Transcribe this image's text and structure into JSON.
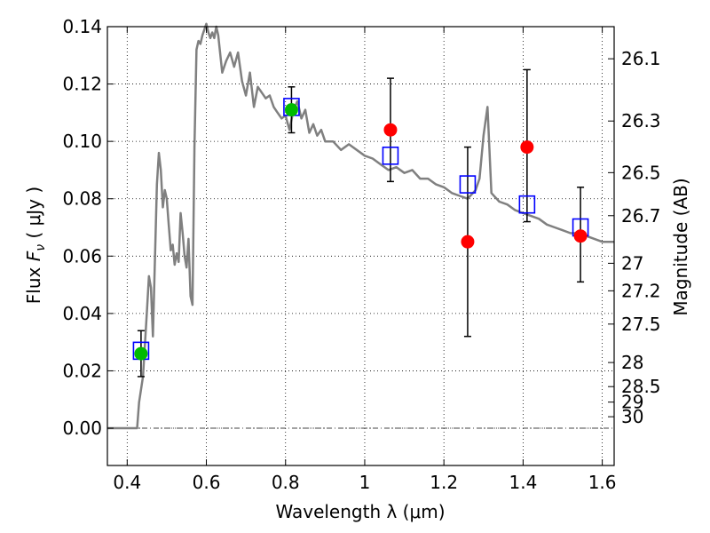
{
  "chart_data": {
    "type": "scatter",
    "xlabel": "Wavelength  λ (μm)",
    "ylabel": {
      "prefix": "Flux  ",
      "symbol": "F",
      "subscript": "ν",
      "suffix": "  ( μJy )"
    },
    "right_ylabel": "Magnitude (AB)",
    "xlim": [
      0.35,
      1.63
    ],
    "ylim": [
      -0.013,
      0.14
    ],
    "grid": true,
    "x_ticks": [
      0.4,
      0.6,
      0.8,
      1.0,
      1.2,
      1.4,
      1.6
    ],
    "x_tick_labels": [
      "0.4",
      "0.6",
      "0.8",
      "1",
      "1.2",
      "1.4",
      "1.6"
    ],
    "y_ticks": [
      0.0,
      0.02,
      0.04,
      0.06,
      0.08,
      0.1,
      0.12,
      0.14
    ],
    "y_tick_labels": [
      "0.00",
      "0.02",
      "0.04",
      "0.06",
      "0.08",
      "0.10",
      "0.12",
      "0.14"
    ],
    "right_ticks": [
      {
        "flux": 0.1288,
        "label": "26.1"
      },
      {
        "flux": 0.1071,
        "label": "26.3"
      },
      {
        "flux": 0.0891,
        "label": "26.5"
      },
      {
        "flux": 0.0741,
        "label": "26.7"
      },
      {
        "flux": 0.0575,
        "label": "27"
      },
      {
        "flux": 0.0479,
        "label": "27.2"
      },
      {
        "flux": 0.0363,
        "label": "27.5"
      },
      {
        "flux": 0.0229,
        "label": "28"
      },
      {
        "flux": 0.0145,
        "label": "28.5"
      },
      {
        "flux": 0.0091,
        "label": "29"
      },
      {
        "flux": 0.004,
        "label": "30"
      }
    ],
    "model_spectrum": {
      "color": "#808080",
      "x": [
        0.35,
        0.4,
        0.425,
        0.43,
        0.44,
        0.45,
        0.455,
        0.46,
        0.465,
        0.47,
        0.475,
        0.48,
        0.485,
        0.49,
        0.495,
        0.5,
        0.505,
        0.51,
        0.515,
        0.52,
        0.525,
        0.53,
        0.535,
        0.54,
        0.545,
        0.55,
        0.555,
        0.56,
        0.565,
        0.57,
        0.575,
        0.58,
        0.585,
        0.59,
        0.595,
        0.6,
        0.605,
        0.61,
        0.615,
        0.62,
        0.625,
        0.63,
        0.64,
        0.65,
        0.66,
        0.67,
        0.68,
        0.69,
        0.7,
        0.71,
        0.72,
        0.73,
        0.74,
        0.75,
        0.76,
        0.77,
        0.78,
        0.79,
        0.8,
        0.81,
        0.82,
        0.83,
        0.84,
        0.85,
        0.86,
        0.87,
        0.88,
        0.89,
        0.9,
        0.92,
        0.94,
        0.96,
        0.98,
        1.0,
        1.02,
        1.04,
        1.06,
        1.08,
        1.1,
        1.12,
        1.14,
        1.16,
        1.18,
        1.2,
        1.22,
        1.24,
        1.26,
        1.28,
        1.29,
        1.3,
        1.31,
        1.32,
        1.34,
        1.36,
        1.38,
        1.4,
        1.42,
        1.44,
        1.46,
        1.48,
        1.5,
        1.52,
        1.54,
        1.56,
        1.58,
        1.6,
        1.63
      ],
      "y": [
        0.0,
        0.0,
        0.0,
        0.009,
        0.018,
        0.041,
        0.053,
        0.049,
        0.032,
        0.058,
        0.085,
        0.096,
        0.09,
        0.077,
        0.083,
        0.08,
        0.071,
        0.062,
        0.064,
        0.057,
        0.061,
        0.058,
        0.075,
        0.068,
        0.06,
        0.056,
        0.066,
        0.046,
        0.043,
        0.098,
        0.132,
        0.135,
        0.134,
        0.137,
        0.139,
        0.141,
        0.138,
        0.136,
        0.138,
        0.136,
        0.14,
        0.137,
        0.124,
        0.128,
        0.131,
        0.126,
        0.131,
        0.121,
        0.116,
        0.124,
        0.112,
        0.119,
        0.117,
        0.115,
        0.116,
        0.112,
        0.11,
        0.108,
        0.109,
        0.104,
        0.111,
        0.114,
        0.108,
        0.111,
        0.103,
        0.106,
        0.102,
        0.104,
        0.1,
        0.1,
        0.097,
        0.099,
        0.097,
        0.095,
        0.094,
        0.092,
        0.09,
        0.091,
        0.089,
        0.09,
        0.087,
        0.087,
        0.085,
        0.084,
        0.082,
        0.081,
        0.08,
        0.083,
        0.087,
        0.102,
        0.112,
        0.082,
        0.079,
        0.078,
        0.076,
        0.075,
        0.074,
        0.073,
        0.071,
        0.07,
        0.069,
        0.068,
        0.068,
        0.067,
        0.066,
        0.065,
        0.065
      ]
    },
    "series": [
      {
        "marker": "open-square",
        "color": "#0000ff",
        "x": [
          0.435,
          0.815,
          1.065,
          1.26,
          1.41,
          1.545
        ],
        "y": [
          0.027,
          0.112,
          0.095,
          0.085,
          0.078,
          0.07
        ]
      },
      {
        "marker": "filled-circle",
        "color": "#00bb00",
        "x": [
          0.435,
          0.815
        ],
        "y": [
          0.026,
          0.111
        ],
        "yerr_low": [
          0.018,
          0.103
        ],
        "yerr_high": [
          0.034,
          0.119
        ]
      },
      {
        "marker": "filled-circle",
        "color": "#ff0000",
        "x": [
          1.065,
          1.26,
          1.41,
          1.545
        ],
        "y": [
          0.104,
          0.065,
          0.098,
          0.067
        ],
        "yerr_low": [
          0.086,
          0.032,
          0.072,
          0.051
        ],
        "yerr_high": [
          0.122,
          0.098,
          0.125,
          0.084
        ]
      }
    ]
  }
}
